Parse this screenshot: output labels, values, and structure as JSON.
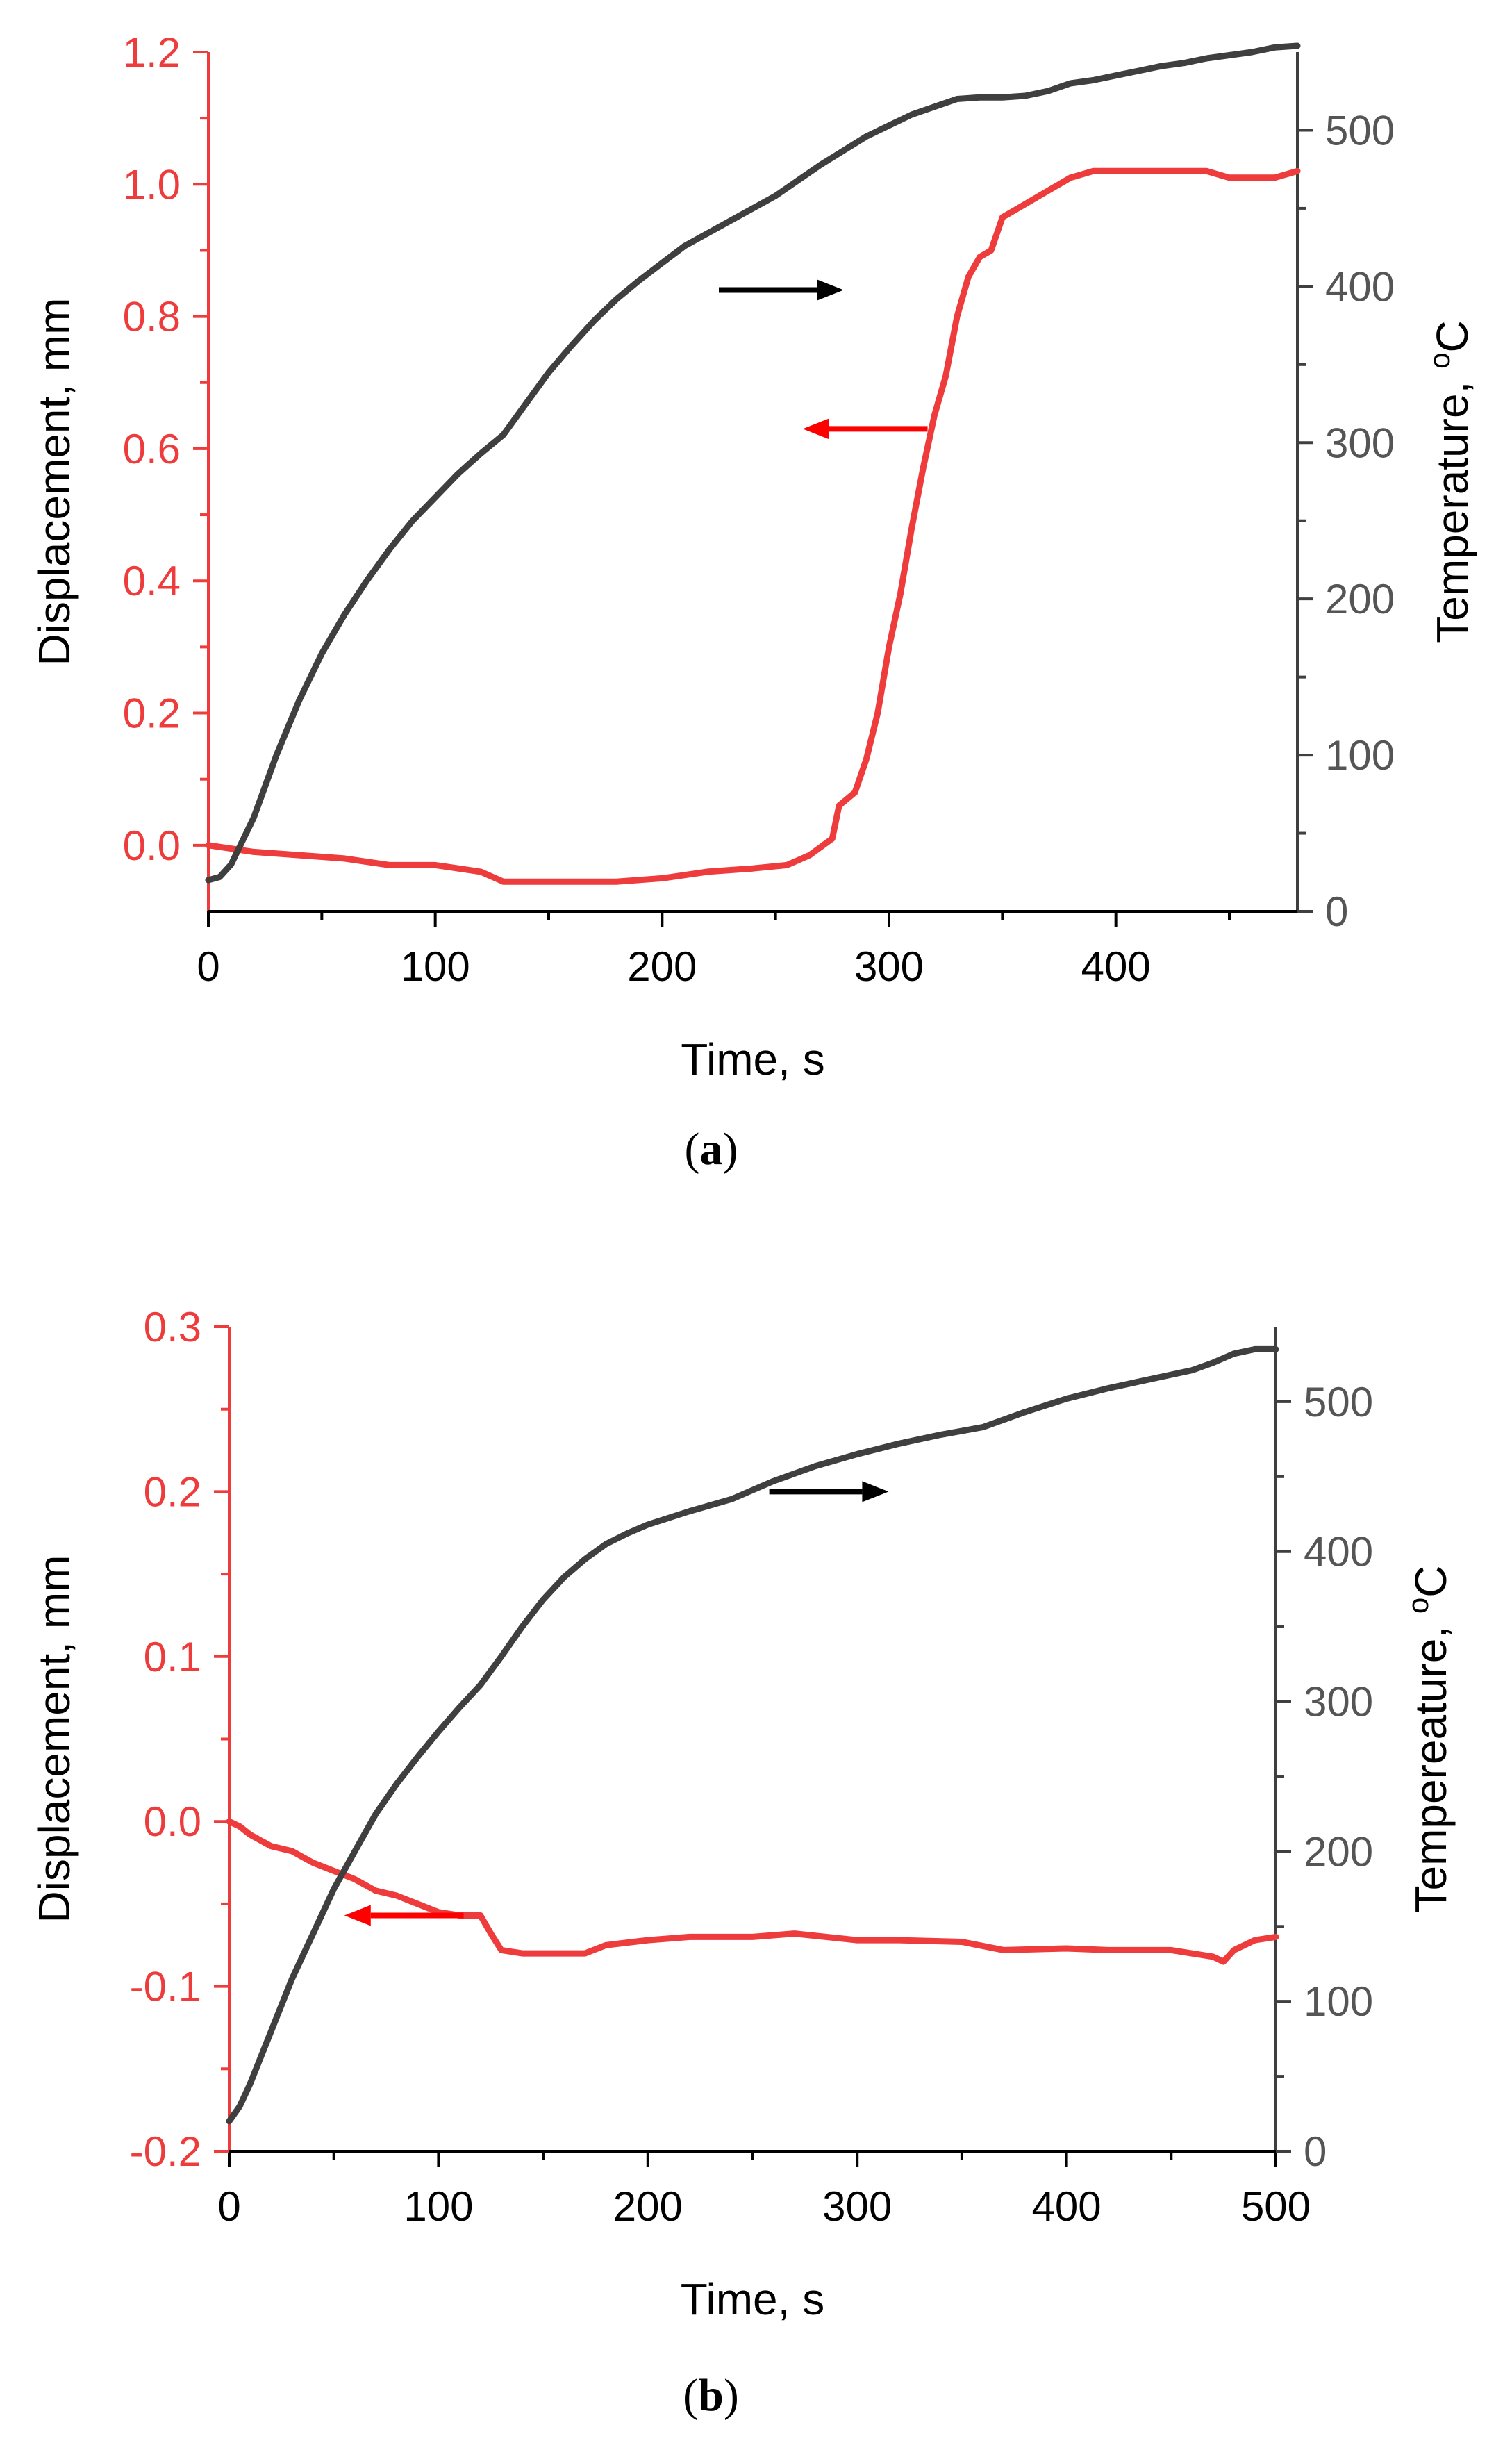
{
  "colors": {
    "displacement": "#ee3b3b",
    "temperature": "#3f3f3f",
    "arrow_red": "#ff0000",
    "arrow_black": "#000000",
    "axis_text_right": "#555555",
    "axis_text_bottom": "#000000"
  },
  "chart_data": [
    {
      "type": "line",
      "panel": "a",
      "caption": {
        "open": "(",
        "label": "a",
        "close": ")"
      },
      "xlabel": "Time, s",
      "ylabel_left": "Displacement, mm",
      "ylabel_right_prefix": "Temperature, ",
      "ylabel_right_sup": "o",
      "ylabel_right_suffix": "C",
      "xlim": [
        0,
        480
      ],
      "ylim_left": [
        -0.1,
        1.2
      ],
      "ylim_right": [
        0,
        550
      ],
      "x_ticks": [
        0,
        100,
        200,
        300,
        400
      ],
      "x_tick_labels": [
        "0",
        "100",
        "200",
        "300",
        "400"
      ],
      "y_left_ticks": [
        0.0,
        0.2,
        0.4,
        0.6,
        0.8,
        1.0,
        1.2
      ],
      "y_left_tick_labels": [
        "0.0",
        "0.2",
        "0.4",
        "0.6",
        "0.8",
        "1.0",
        "1.2"
      ],
      "y_right_ticks": [
        0,
        100,
        200,
        300,
        400,
        500
      ],
      "y_right_tick_labels": [
        "0",
        "100",
        "200",
        "300",
        "400",
        "500"
      ],
      "series": [
        {
          "name": "Displacement",
          "axis": "left",
          "x": [
            0,
            20,
            40,
            60,
            80,
            100,
            120,
            130,
            140,
            160,
            180,
            200,
            220,
            240,
            255,
            265,
            275,
            278,
            285,
            290,
            295,
            300,
            305,
            310,
            315,
            320,
            325,
            330,
            335,
            340,
            345,
            350,
            355,
            360,
            370,
            380,
            390,
            400,
            420,
            440,
            450,
            460,
            470,
            480
          ],
          "values": [
            0.0,
            -0.01,
            -0.015,
            -0.02,
            -0.03,
            -0.03,
            -0.04,
            -0.055,
            -0.055,
            -0.055,
            -0.055,
            -0.05,
            -0.04,
            -0.035,
            -0.03,
            -0.015,
            0.01,
            0.06,
            0.08,
            0.13,
            0.2,
            0.3,
            0.38,
            0.48,
            0.57,
            0.65,
            0.71,
            0.8,
            0.86,
            0.89,
            0.9,
            0.95,
            0.96,
            0.97,
            0.99,
            1.01,
            1.02,
            1.02,
            1.02,
            1.02,
            1.01,
            1.01,
            1.01,
            1.02
          ]
        },
        {
          "name": "Temperature",
          "axis": "right",
          "x": [
            0,
            5,
            10,
            15,
            20,
            30,
            40,
            50,
            60,
            70,
            80,
            90,
            100,
            110,
            120,
            130,
            140,
            150,
            160,
            170,
            180,
            190,
            200,
            210,
            220,
            230,
            240,
            250,
            260,
            270,
            280,
            290,
            300,
            310,
            320,
            330,
            340,
            350,
            360,
            370,
            380,
            390,
            400,
            410,
            420,
            430,
            440,
            450,
            460,
            470,
            480
          ],
          "values": [
            20,
            22,
            30,
            45,
            60,
            100,
            135,
            165,
            190,
            212,
            232,
            250,
            265,
            280,
            293,
            305,
            325,
            345,
            362,
            378,
            392,
            404,
            415,
            426,
            434,
            442,
            450,
            458,
            468,
            478,
            487,
            496,
            503,
            510,
            515,
            520,
            521,
            521,
            522,
            525,
            530,
            532,
            535,
            538,
            541,
            543,
            546,
            548,
            550,
            553,
            554
          ]
        }
      ],
      "annotations": [
        {
          "type": "arrow",
          "color": "black",
          "direction": "right",
          "from": [
            225,
            0.84
          ],
          "to": [
            280,
            0.84
          ],
          "meaning": "Temperature curve reads on right axis"
        },
        {
          "type": "arrow",
          "color": "red",
          "direction": "left",
          "from": [
            317,
            0.63
          ],
          "to": [
            262,
            0.63
          ],
          "meaning": "Displacement curve reads on left axis"
        }
      ]
    },
    {
      "type": "line",
      "panel": "b",
      "caption": {
        "open": "(",
        "label": "b",
        "close": ")"
      },
      "xlabel": "Time, s",
      "ylabel_left": "Displacement, mm",
      "ylabel_right_prefix": "Tempereature, ",
      "ylabel_right_sup": "o",
      "ylabel_right_suffix": "C",
      "xlim": [
        0,
        500
      ],
      "ylim_left": [
        -0.2,
        0.3
      ],
      "ylim_right": [
        0,
        550
      ],
      "x_ticks": [
        0,
        100,
        200,
        300,
        400,
        500
      ],
      "x_tick_labels": [
        "0",
        "100",
        "200",
        "300",
        "400",
        "500"
      ],
      "y_left_ticks": [
        -0.2,
        -0.1,
        0.0,
        0.1,
        0.2,
        0.3
      ],
      "y_left_tick_labels": [
        "-0.2",
        "-0.1",
        "0.0",
        "0.1",
        "0.2",
        "0.3"
      ],
      "y_right_ticks": [
        0,
        100,
        200,
        300,
        400,
        500
      ],
      "y_right_tick_labels": [
        "0",
        "100",
        "200",
        "300",
        "400",
        "500"
      ],
      "series": [
        {
          "name": "Displacement",
          "axis": "left",
          "x": [
            0,
            5,
            10,
            20,
            30,
            40,
            50,
            60,
            70,
            80,
            90,
            100,
            110,
            120,
            125,
            130,
            140,
            150,
            160,
            170,
            180,
            200,
            220,
            250,
            270,
            300,
            320,
            350,
            370,
            400,
            420,
            450,
            470,
            475,
            480,
            490,
            500
          ],
          "values": [
            0.0,
            -0.003,
            -0.008,
            -0.015,
            -0.018,
            -0.025,
            -0.03,
            -0.035,
            -0.042,
            -0.045,
            -0.05,
            -0.055,
            -0.057,
            -0.057,
            -0.068,
            -0.078,
            -0.08,
            -0.08,
            -0.08,
            -0.08,
            -0.075,
            -0.072,
            -0.07,
            -0.07,
            -0.068,
            -0.072,
            -0.072,
            -0.073,
            -0.078,
            -0.077,
            -0.078,
            -0.078,
            -0.082,
            -0.085,
            -0.078,
            -0.072,
            -0.07
          ]
        },
        {
          "name": "Temperature",
          "axis": "right",
          "x": [
            0,
            5,
            10,
            20,
            30,
            40,
            50,
            60,
            70,
            80,
            90,
            100,
            110,
            120,
            130,
            140,
            150,
            160,
            170,
            180,
            190,
            200,
            220,
            240,
            260,
            280,
            300,
            320,
            340,
            360,
            380,
            400,
            420,
            440,
            460,
            470,
            480,
            490,
            500
          ],
          "values": [
            20,
            30,
            45,
            80,
            115,
            145,
            175,
            200,
            225,
            245,
            263,
            280,
            296,
            311,
            330,
            350,
            368,
            383,
            395,
            405,
            412,
            418,
            427,
            435,
            447,
            457,
            465,
            472,
            478,
            483,
            493,
            502,
            509,
            515,
            521,
            526,
            532,
            535,
            535
          ]
        }
      ],
      "annotations": [
        {
          "type": "arrow",
          "color": "black",
          "direction": "right",
          "from": [
            258,
            0.2
          ],
          "to": [
            315,
            0.2
          ],
          "meaning": "Temperature curve reads on right axis"
        },
        {
          "type": "arrow",
          "color": "red",
          "direction": "left",
          "from": [
            112,
            -0.057
          ],
          "to": [
            55,
            -0.057
          ],
          "meaning": "Displacement curve reads on left axis"
        }
      ]
    }
  ]
}
